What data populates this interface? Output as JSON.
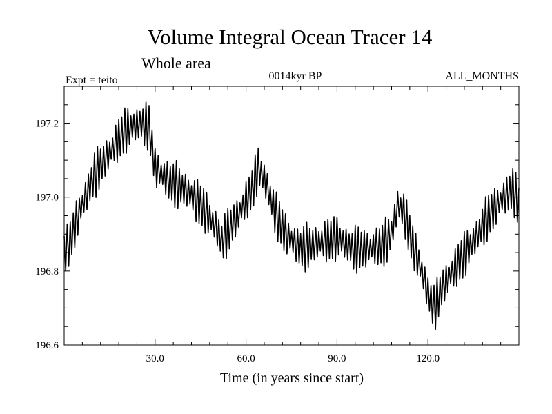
{
  "chart_data": {
    "type": "line",
    "title": "Volume Integral Ocean Tracer 14",
    "subtitle": "Whole area",
    "header_left": "Expt = teito",
    "header_center": "0014kyr BP",
    "header_right": "ALL_MONTHS",
    "xlabel": "Time (in years since start)",
    "ylabel": "",
    "xlim": [
      0,
      150
    ],
    "ylim": [
      196.6,
      197.3
    ],
    "x_ticks": [
      30,
      60,
      90,
      120
    ],
    "x_tick_labels": [
      "30.0",
      "60.0",
      "90.0",
      "120.0"
    ],
    "y_ticks": [
      196.6,
      196.8,
      197.0,
      197.2
    ],
    "y_tick_labels": [
      "196.6",
      "196.8",
      "197.0",
      "197.2"
    ],
    "line_color": "#000000",
    "series": [
      {
        "name": "Volume Integral Ocean Tracer 14",
        "oscillation_amplitude": 0.045,
        "points_per_year": 2,
        "trend": {
          "x": [
            0,
            2,
            5,
            10,
            15,
            20,
            25,
            28,
            30,
            35,
            40,
            45,
            50,
            52,
            55,
            58,
            62,
            64,
            66,
            68,
            70,
            73,
            78,
            85,
            90,
            95,
            100,
            105,
            108,
            110,
            112,
            115,
            118,
            120,
            122,
            125,
            130,
            135,
            140,
            145,
            148,
            150
          ],
          "y": [
            196.85,
            196.88,
            196.96,
            197.06,
            197.12,
            197.18,
            197.2,
            197.19,
            197.08,
            197.04,
            197.02,
            196.98,
            196.92,
            196.88,
            196.92,
            196.96,
            197.02,
            197.08,
            197.05,
            197.0,
            196.95,
            196.9,
            196.86,
            196.88,
            196.89,
            196.86,
            196.86,
            196.87,
            196.9,
            196.98,
            196.96,
            196.87,
            196.8,
            196.74,
            196.7,
            196.76,
            196.82,
            196.88,
            196.95,
            197.0,
            197.02,
            196.98
          ]
        }
      }
    ]
  }
}
